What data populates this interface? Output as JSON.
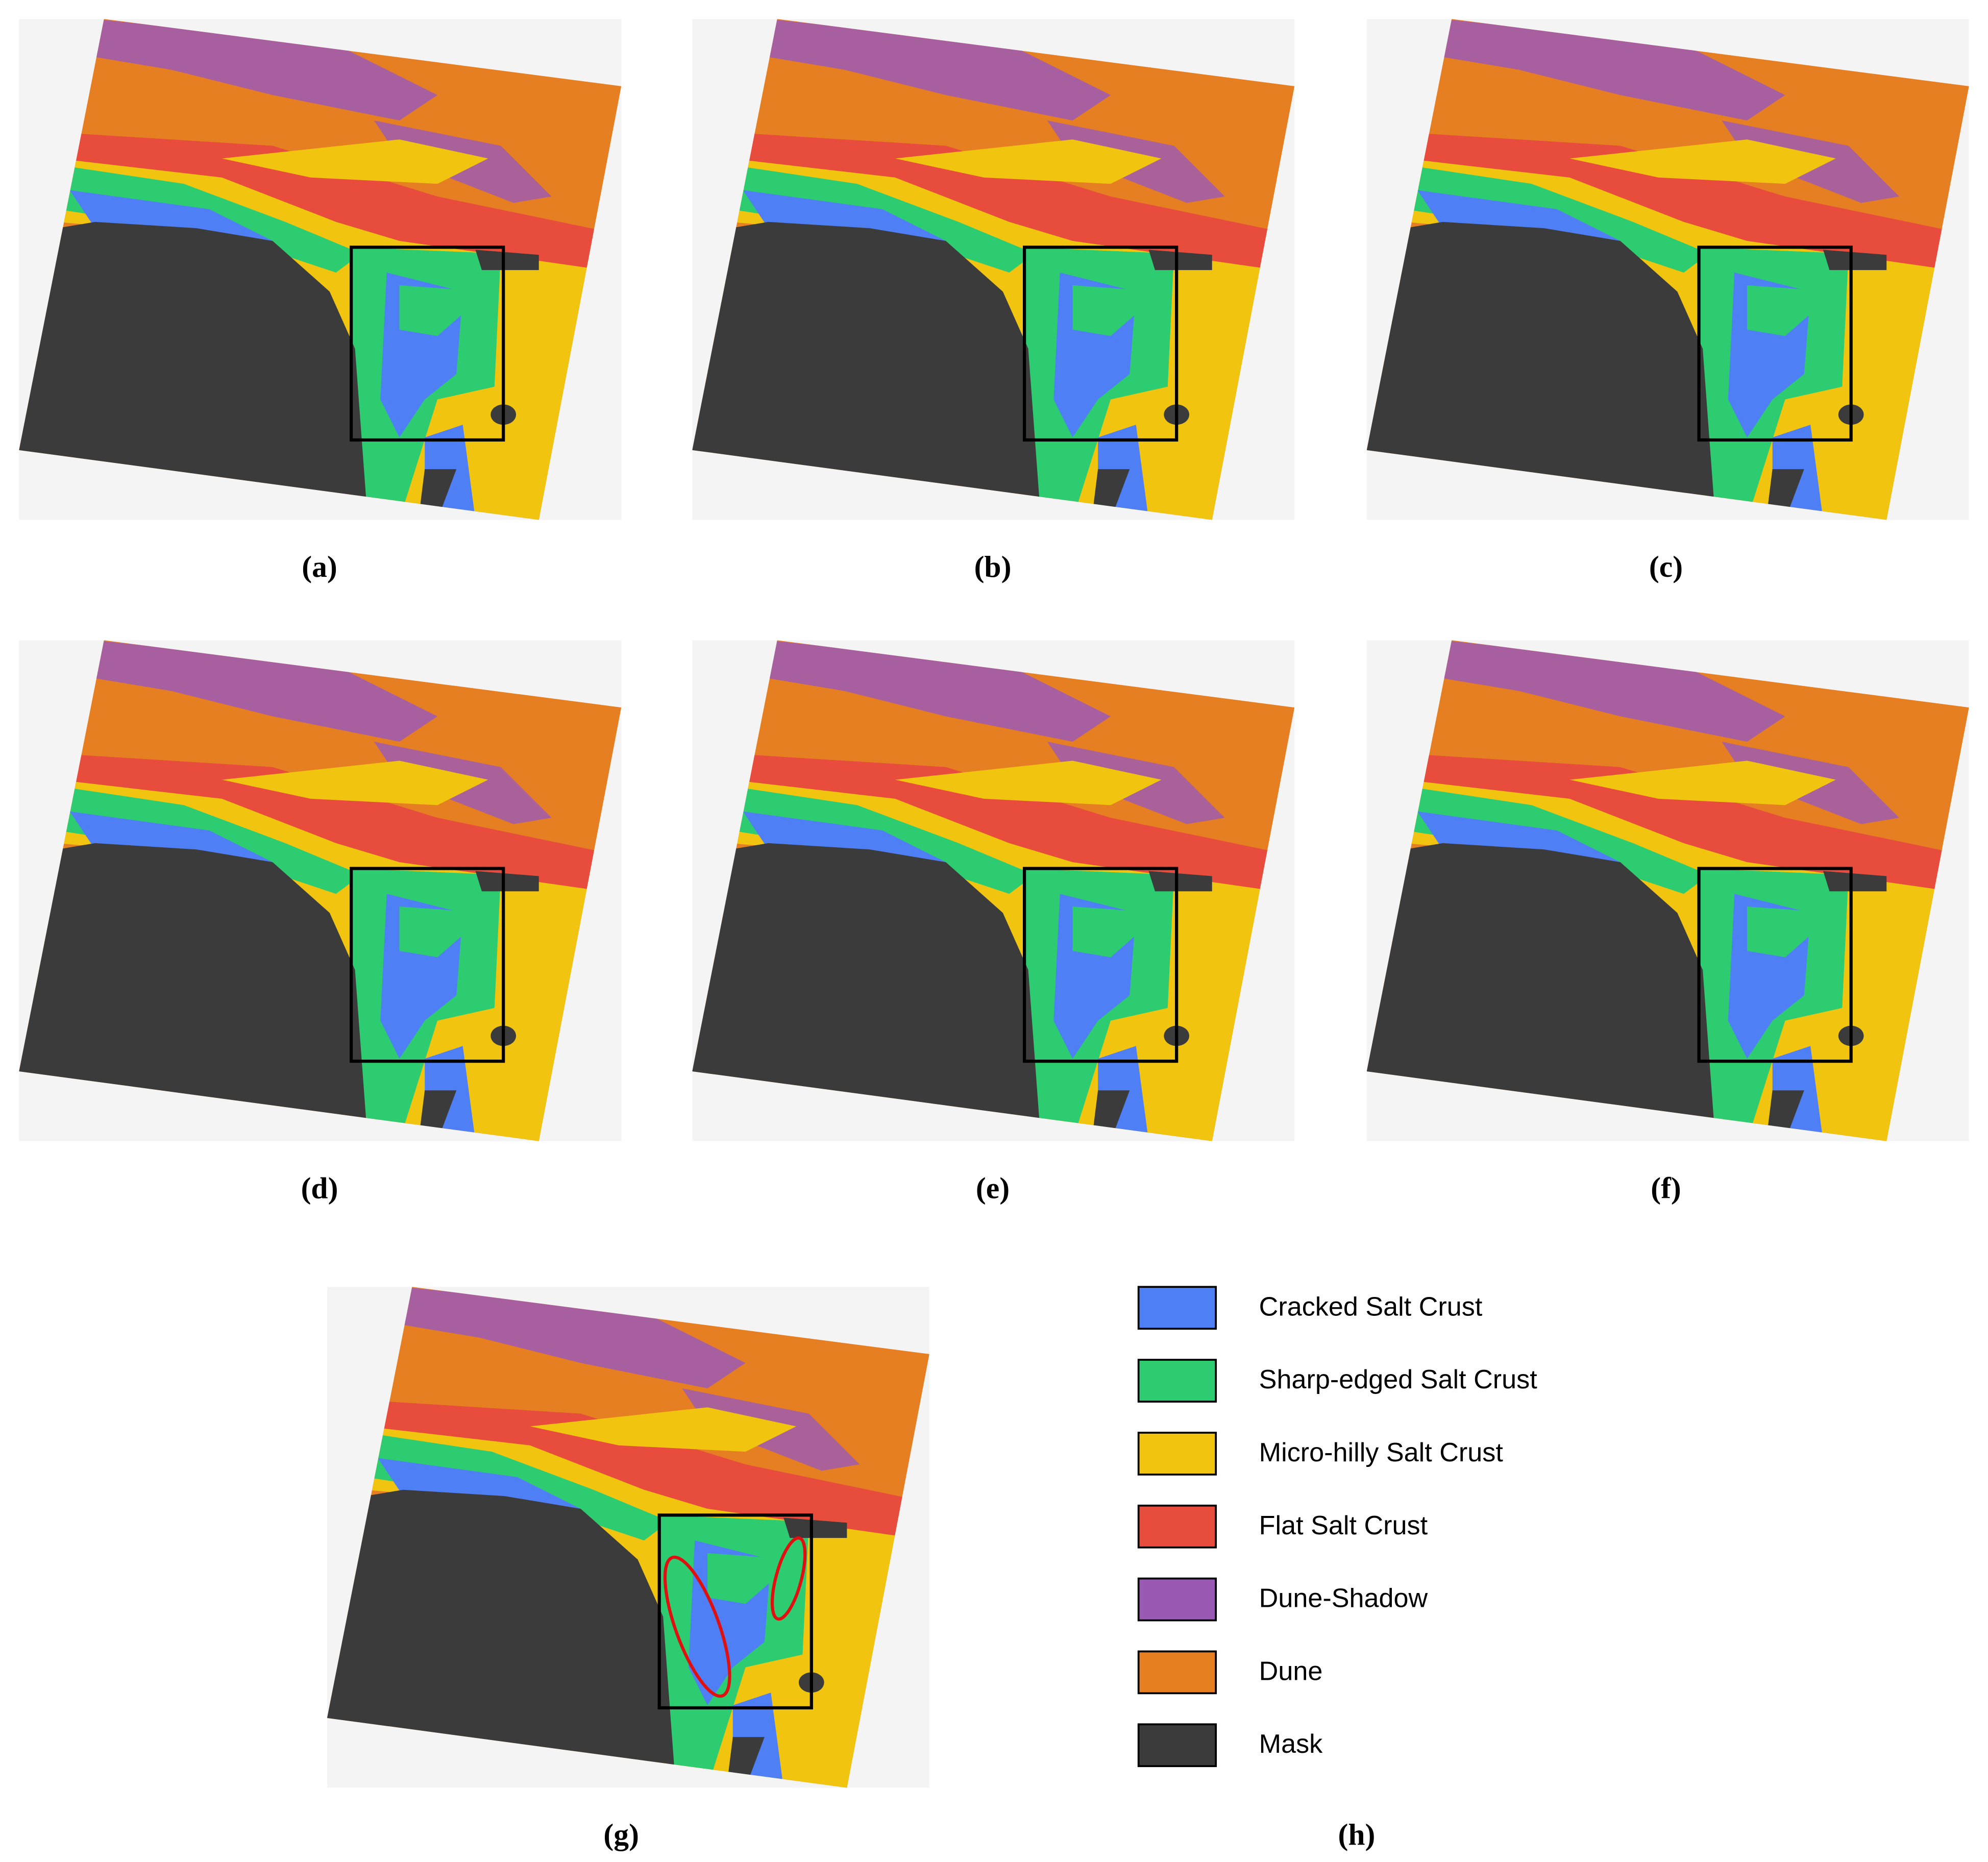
{
  "panels": [
    {
      "label": "(a)"
    },
    {
      "label": "(b)"
    },
    {
      "label": "(c)"
    },
    {
      "label": "(d)"
    },
    {
      "label": "(e)"
    },
    {
      "label": "(f)"
    },
    {
      "label": "(g)"
    },
    {
      "label": "(h)"
    }
  ],
  "legend": [
    {
      "label": "Cracked Salt Crust",
      "color": "#4f7ff5"
    },
    {
      "label": "Sharp-edged Salt Crust",
      "color": "#2ecc71"
    },
    {
      "label": "Micro-hilly Salt Crust",
      "color": "#f1c40f"
    },
    {
      "label": "Flat Salt Crust",
      "color": "#e74c3c"
    },
    {
      "label": "Dune-Shadow",
      "color": "#9b59b6"
    },
    {
      "label": "Dune",
      "color": "#e67e22"
    },
    {
      "label": "Mask",
      "color": "#3b3b3b"
    }
  ]
}
